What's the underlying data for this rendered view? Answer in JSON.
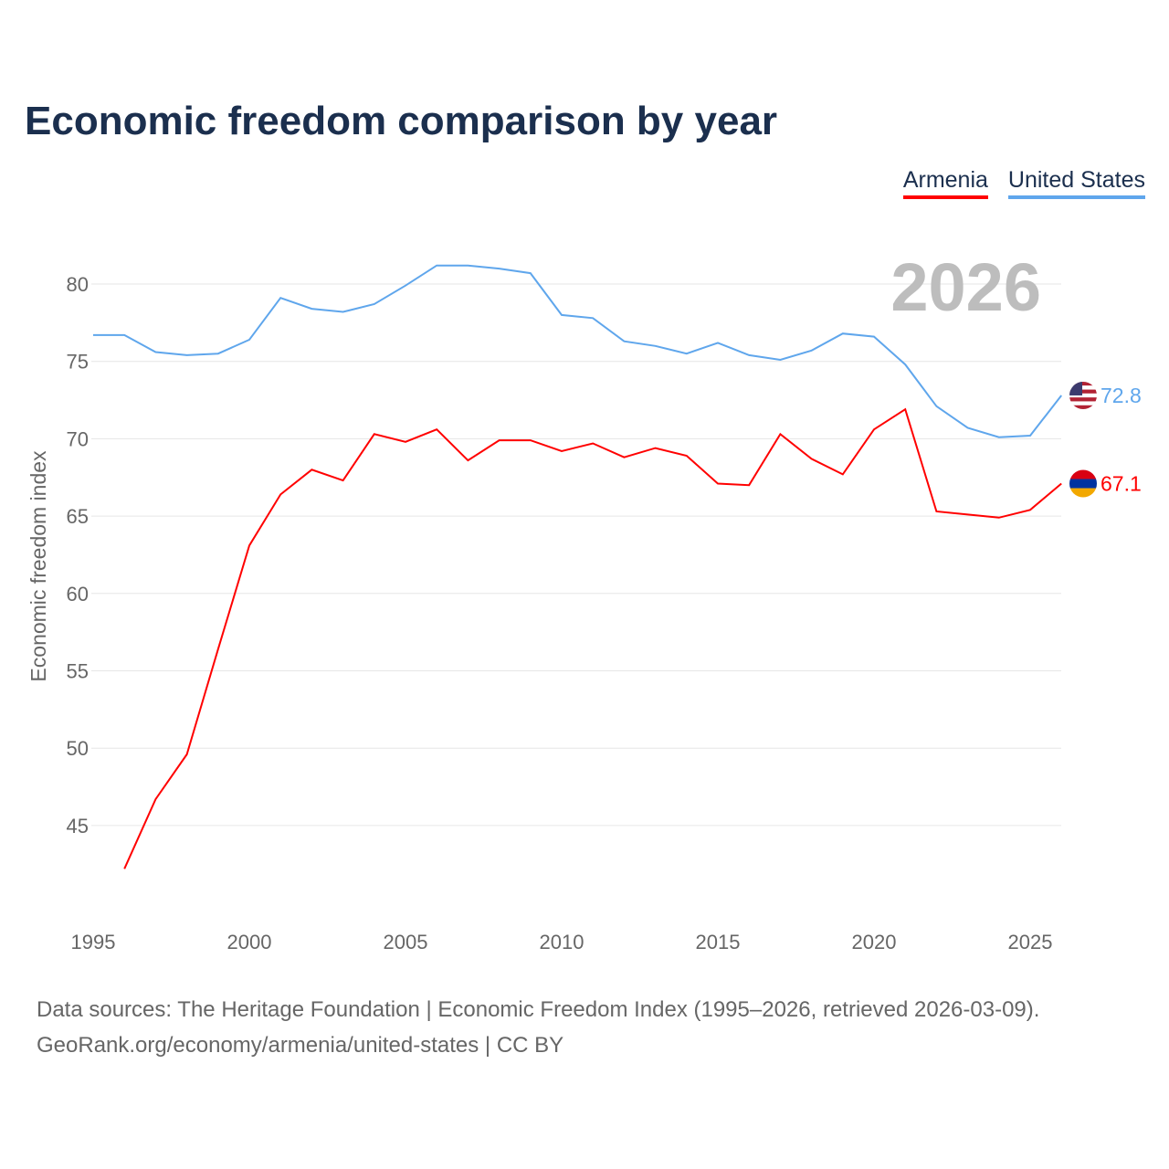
{
  "colors": {
    "armenia": "#ff0000",
    "united_states": "#5fa6ec",
    "title": "#1b2f4e",
    "year_watermark": "#bdbdbd"
  },
  "footer": {
    "line1": "Data sources: The Heritage Foundation | Economic Freedom Index (1995–2026, retrieved 2026-03-09).",
    "line2": "GeoRank.org/economy/armenia/united-states | CC BY"
  },
  "chart_data": {
    "type": "line",
    "title": "Economic freedom comparison by year",
    "ylabel": "Economic freedom index",
    "xlabel": "",
    "year_watermark": "2026",
    "legend_position": "top-right",
    "grid": true,
    "xlim": [
      1995,
      2026
    ],
    "ylim": [
      39.5,
      82.5
    ],
    "xticks": [
      "1995",
      "2000",
      "2005",
      "2010",
      "2015",
      "2020",
      "2025"
    ],
    "yticks": [
      "45",
      "50",
      "55",
      "60",
      "65",
      "70",
      "75",
      "80"
    ],
    "x": [
      1995,
      1996,
      1997,
      1998,
      1999,
      2000,
      2001,
      2002,
      2003,
      2004,
      2005,
      2006,
      2007,
      2008,
      2009,
      2010,
      2011,
      2012,
      2013,
      2014,
      2015,
      2016,
      2017,
      2018,
      2019,
      2020,
      2021,
      2022,
      2023,
      2024,
      2025,
      2026
    ],
    "series": [
      {
        "name": "Armenia",
        "color": "#ff0000",
        "end_label": "67.1",
        "flag": "armenia-flag",
        "values": [
          null,
          42.2,
          46.7,
          49.6,
          56.4,
          63.1,
          66.4,
          68.0,
          67.3,
          70.3,
          69.8,
          70.6,
          68.6,
          69.9,
          69.9,
          69.2,
          69.7,
          68.8,
          69.4,
          68.9,
          67.1,
          67.0,
          70.3,
          68.7,
          67.7,
          70.6,
          71.9,
          65.3,
          65.1,
          64.9,
          65.4,
          67.1
        ]
      },
      {
        "name": "United States",
        "color": "#5fa6ec",
        "end_label": "72.8",
        "flag": "us-flag",
        "values": [
          76.7,
          76.7,
          75.6,
          75.4,
          75.5,
          76.4,
          79.1,
          78.4,
          78.2,
          78.7,
          79.9,
          81.2,
          81.2,
          81.0,
          80.7,
          78.0,
          77.8,
          76.3,
          76.0,
          75.5,
          76.2,
          75.4,
          75.1,
          75.7,
          76.8,
          76.6,
          74.8,
          72.1,
          70.7,
          70.1,
          70.2,
          72.8
        ]
      }
    ]
  }
}
